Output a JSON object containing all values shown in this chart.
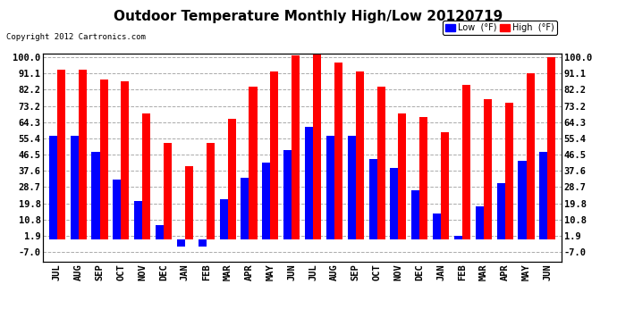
{
  "title": "Outdoor Temperature Monthly High/Low 20120719",
  "copyright": "Copyright 2012 Cartronics.com",
  "legend_low": "Low  (°F)",
  "legend_high": "High  (°F)",
  "months": [
    "JUL",
    "AUG",
    "SEP",
    "OCT",
    "NOV",
    "DEC",
    "JAN",
    "FEB",
    "MAR",
    "APR",
    "MAY",
    "JUN",
    "JUL",
    "AUG",
    "SEP",
    "OCT",
    "NOV",
    "DEC",
    "JAN",
    "FEB",
    "MAR",
    "APR",
    "MAY",
    "JUN"
  ],
  "high": [
    93,
    93,
    88,
    87,
    69,
    53,
    40,
    53,
    66,
    84,
    92,
    101,
    103,
    97,
    92,
    84,
    69,
    67,
    59,
    85,
    77,
    75,
    91,
    100
  ],
  "low": [
    57,
    57,
    48,
    33,
    21,
    8,
    -4,
    -4,
    22,
    34,
    42,
    49,
    62,
    57,
    57,
    44,
    39,
    27,
    14,
    2,
    18,
    31,
    43,
    48
  ],
  "yticks": [
    -7.0,
    1.9,
    10.8,
    19.8,
    28.7,
    37.6,
    46.5,
    55.4,
    64.3,
    73.2,
    82.2,
    91.1,
    100.0
  ],
  "ylim_min": -12.0,
  "ylim_max": 102.0,
  "bar_width": 0.38,
  "low_color": "#0000FF",
  "high_color": "#FF0000",
  "bg_color": "#FFFFFF",
  "grid_color": "#AAAAAA",
  "title_fontsize": 11,
  "tick_fontsize": 7.5,
  "copyright_fontsize": 6.5
}
